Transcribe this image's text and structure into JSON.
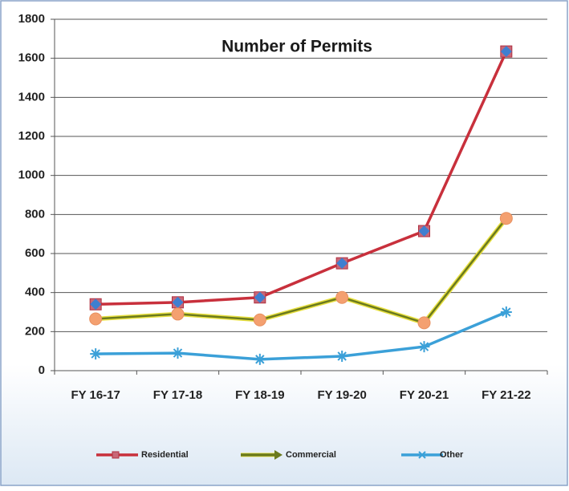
{
  "chart_data": {
    "type": "line",
    "title": "Number of Permits",
    "categories": [
      "FY 16-17",
      "FY 17-18",
      "FY 18-19",
      "FY 19-20",
      "FY 20-21",
      "FY 21-22"
    ],
    "series": [
      {
        "name": "Residential",
        "color": "#c8303c",
        "values": [
          340,
          350,
          375,
          550,
          715,
          1635
        ]
      },
      {
        "name": "Commercial",
        "color": "#6b7a1e",
        "values": [
          265,
          290,
          260,
          375,
          245,
          780
        ]
      },
      {
        "name": "Other",
        "color": "#3ba0d8",
        "values": [
          86,
          90,
          58,
          74,
          123,
          300
        ]
      }
    ],
    "ylim": [
      0,
      1800
    ],
    "yticks": [
      0,
      200,
      400,
      600,
      800,
      1000,
      1200,
      1400,
      1600,
      1800
    ],
    "grid": true
  }
}
